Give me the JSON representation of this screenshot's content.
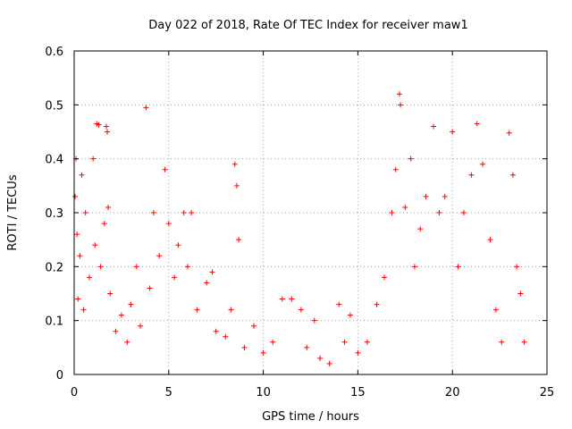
{
  "chart_data": {
    "type": "scatter",
    "title": "Day 022 of 2018, Rate Of TEC Index for receiver maw1",
    "xlabel": "GPS time / hours",
    "ylabel": "ROTI / TECUs",
    "xlim": [
      0,
      25
    ],
    "ylim": [
      0,
      0.6
    ],
    "x_ticks": [
      0,
      5,
      10,
      15,
      20,
      25
    ],
    "x_tick_labels": [
      "0",
      "5",
      "10",
      "15",
      "20",
      "25"
    ],
    "y_ticks": [
      0,
      0.1,
      0.2,
      0.3,
      0.4,
      0.5,
      0.6
    ],
    "y_tick_labels": [
      "0",
      "0.1",
      "0.2",
      "0.3",
      "0.4",
      "0.5",
      "0.6"
    ],
    "grid": true,
    "marker": "+",
    "color": "#ff0000",
    "series": [
      {
        "points": [
          [
            0.05,
            0.33
          ],
          [
            0.1,
            0.4
          ],
          [
            0.15,
            0.26
          ],
          [
            0.2,
            0.14
          ],
          [
            0.3,
            0.22
          ],
          [
            0.4,
            0.37
          ],
          [
            0.5,
            0.12
          ],
          [
            0.6,
            0.3
          ],
          [
            0.8,
            0.18
          ],
          [
            1.0,
            0.4
          ],
          [
            1.1,
            0.24
          ],
          [
            1.2,
            0.465
          ],
          [
            1.3,
            0.463
          ],
          [
            1.4,
            0.2
          ],
          [
            1.6,
            0.28
          ],
          [
            1.7,
            0.46
          ],
          [
            1.75,
            0.45
          ],
          [
            1.8,
            0.31
          ],
          [
            1.9,
            0.15
          ],
          [
            2.2,
            0.08
          ],
          [
            2.5,
            0.11
          ],
          [
            2.8,
            0.06
          ],
          [
            3.0,
            0.13
          ],
          [
            3.3,
            0.2
          ],
          [
            3.5,
            0.09
          ],
          [
            3.8,
            0.495
          ],
          [
            4.0,
            0.16
          ],
          [
            4.2,
            0.3
          ],
          [
            4.5,
            0.22
          ],
          [
            4.8,
            0.38
          ],
          [
            5.0,
            0.28
          ],
          [
            5.3,
            0.18
          ],
          [
            5.5,
            0.24
          ],
          [
            5.8,
            0.3
          ],
          [
            6.0,
            0.2
          ],
          [
            6.2,
            0.3
          ],
          [
            6.5,
            0.12
          ],
          [
            7.0,
            0.17
          ],
          [
            7.3,
            0.19
          ],
          [
            7.5,
            0.08
          ],
          [
            8.0,
            0.07
          ],
          [
            8.3,
            0.12
          ],
          [
            8.5,
            0.39
          ],
          [
            8.6,
            0.35
          ],
          [
            8.7,
            0.25
          ],
          [
            9.0,
            0.05
          ],
          [
            9.5,
            0.09
          ],
          [
            10.0,
            0.04
          ],
          [
            10.5,
            0.06
          ],
          [
            11.0,
            0.14
          ],
          [
            11.5,
            0.14
          ],
          [
            12.0,
            0.12
          ],
          [
            12.3,
            0.05
          ],
          [
            12.7,
            0.1
          ],
          [
            13.0,
            0.03
          ],
          [
            13.5,
            0.02
          ],
          [
            14.0,
            0.13
          ],
          [
            14.3,
            0.06
          ],
          [
            14.6,
            0.11
          ],
          [
            15.0,
            0.04
          ],
          [
            15.5,
            0.06
          ],
          [
            16.0,
            0.13
          ],
          [
            16.4,
            0.18
          ],
          [
            16.8,
            0.3
          ],
          [
            17.0,
            0.38
          ],
          [
            17.2,
            0.52
          ],
          [
            17.25,
            0.5
          ],
          [
            17.5,
            0.31
          ],
          [
            17.8,
            0.4
          ],
          [
            18.0,
            0.2
          ],
          [
            18.3,
            0.27
          ],
          [
            18.6,
            0.33
          ],
          [
            19.0,
            0.46
          ],
          [
            19.3,
            0.3
          ],
          [
            19.6,
            0.33
          ],
          [
            20.0,
            0.45
          ],
          [
            20.3,
            0.2
          ],
          [
            20.6,
            0.3
          ],
          [
            21.0,
            0.37
          ],
          [
            21.3,
            0.465
          ],
          [
            21.6,
            0.39
          ],
          [
            22.0,
            0.25
          ],
          [
            22.3,
            0.12
          ],
          [
            22.6,
            0.06
          ],
          [
            23.0,
            0.448
          ],
          [
            23.2,
            0.37
          ],
          [
            23.4,
            0.2
          ],
          [
            23.6,
            0.15
          ],
          [
            23.8,
            0.06
          ]
        ]
      }
    ]
  }
}
